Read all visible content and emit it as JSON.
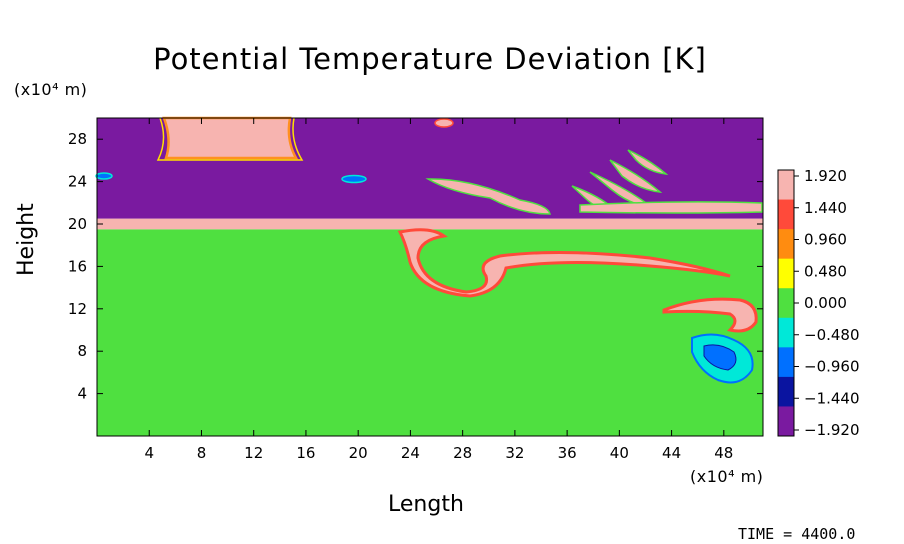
{
  "chart_data": {
    "type": "heatmap",
    "title": "Potential Temperature Deviation [K]",
    "xlabel": "Length",
    "ylabel": "Height",
    "x_unit_label": "(x10⁴ m)",
    "y_unit_label": "(x10⁴ m)",
    "xlim": [
      0,
      51
    ],
    "ylim": [
      0,
      30
    ],
    "x_ticks": [
      "4",
      "8",
      "12",
      "16",
      "20",
      "24",
      "28",
      "32",
      "36",
      "40",
      "44",
      "48"
    ],
    "y_ticks": [
      "4",
      "8",
      "12",
      "16",
      "20",
      "24",
      "28"
    ],
    "colorbar": {
      "min": -1.92,
      "max": 1.92,
      "labels": [
        "1.920",
        "1.440",
        "0.960",
        "0.480",
        "0.000",
        "−0.480",
        "−0.960",
        "−1.440",
        "−1.920"
      ],
      "colors": [
        "#f7b4b0",
        "#ff4a3a",
        "#ff8c10",
        "#ffff00",
        "#4fe040",
        "#00e8d8",
        "#0070ff",
        "#0a14a0",
        "#7a1aa0"
      ]
    },
    "fields": {
      "lower_layer_value": 0.0,
      "inversion_layer_value": 1.92,
      "upper_layer_value": -1.92,
      "inversion_height": 19.5,
      "upper_boundary_height": 20.5
    }
  },
  "footer": {
    "time_label": "TIME = 4400.0"
  }
}
